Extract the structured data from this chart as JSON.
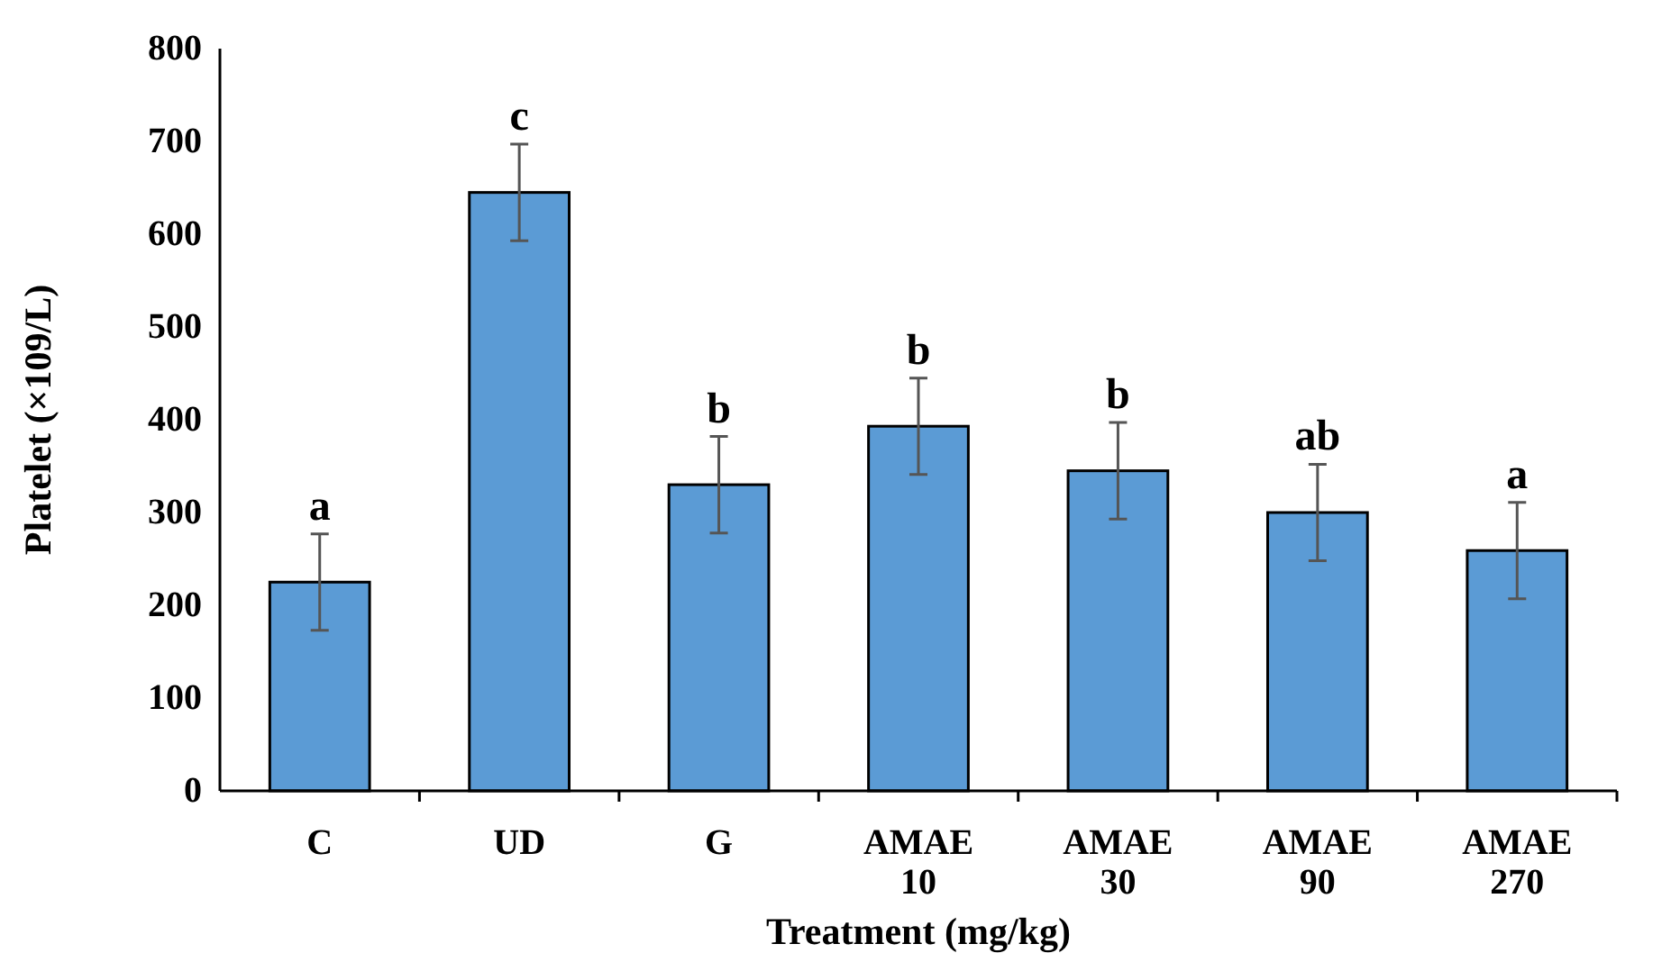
{
  "chart_data": {
    "type": "bar",
    "xlabel": "Treatment (mg/kg)",
    "ylabel": "Platelet (×109/L)",
    "categories": [
      "C",
      "UD",
      "G",
      "AMAE 10",
      "AMAE 30",
      "AMAE 90",
      "AMAE 270"
    ],
    "values": [
      225,
      645,
      330,
      393,
      345,
      300,
      259
    ],
    "errors": [
      52,
      52,
      52,
      52,
      52,
      52,
      52
    ],
    "color": "#5b9bd5",
    "ylim": [
      0,
      800
    ],
    "yticks": [
      0,
      100,
      200,
      300,
      400,
      500,
      600,
      700,
      800
    ],
    "grid": false,
    "annotations": [
      "a",
      "c",
      "b",
      "b",
      "b",
      "ab",
      "a"
    ]
  }
}
